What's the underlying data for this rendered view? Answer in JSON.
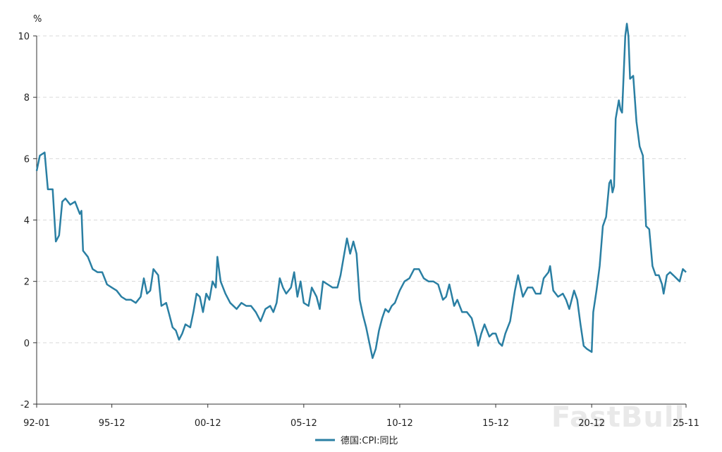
{
  "chart_data": {
    "type": "line",
    "unit": "%",
    "ylim": [
      -2,
      10
    ],
    "yticks": [
      -2,
      0,
      2,
      4,
      6,
      8,
      10
    ],
    "xlim": [
      "1992-01",
      "2025-11"
    ],
    "xtick_labels": [
      "92-01",
      "95-12",
      "00-12",
      "05-12",
      "10-12",
      "15-12",
      "20-12",
      "25-11"
    ],
    "grid": "horizontal dashed",
    "legend_position": "bottom-center",
    "watermark": "FastBull",
    "series": [
      {
        "name": "德国:CPI:同比",
        "color": "#2a7fa3",
        "points": [
          [
            "1992-01",
            5.6
          ],
          [
            "1992-03",
            6.1
          ],
          [
            "1992-06",
            6.2
          ],
          [
            "1992-08",
            5.0
          ],
          [
            "1992-11",
            5.0
          ],
          [
            "1993-01",
            3.3
          ],
          [
            "1993-03",
            3.5
          ],
          [
            "1993-05",
            4.6
          ],
          [
            "1993-07",
            4.7
          ],
          [
            "1993-10",
            4.5
          ],
          [
            "1994-01",
            4.6
          ],
          [
            "1994-04",
            4.2
          ],
          [
            "1994-05",
            4.3
          ],
          [
            "1994-06",
            3.0
          ],
          [
            "1994-09",
            2.8
          ],
          [
            "1994-12",
            2.4
          ],
          [
            "1995-03",
            2.3
          ],
          [
            "1995-06",
            2.3
          ],
          [
            "1995-09",
            1.9
          ],
          [
            "1995-12",
            1.8
          ],
          [
            "1996-03",
            1.7
          ],
          [
            "1996-06",
            1.5
          ],
          [
            "1996-09",
            1.4
          ],
          [
            "1996-12",
            1.4
          ],
          [
            "1997-03",
            1.3
          ],
          [
            "1997-06",
            1.5
          ],
          [
            "1997-08",
            2.1
          ],
          [
            "1997-10",
            1.6
          ],
          [
            "1997-12",
            1.7
          ],
          [
            "1998-02",
            2.4
          ],
          [
            "1998-05",
            2.2
          ],
          [
            "1998-07",
            1.2
          ],
          [
            "1998-10",
            1.3
          ],
          [
            "1998-12",
            0.9
          ],
          [
            "1999-02",
            0.5
          ],
          [
            "1999-04",
            0.4
          ],
          [
            "1999-06",
            0.1
          ],
          [
            "1999-08",
            0.3
          ],
          [
            "1999-10",
            0.6
          ],
          [
            "2000-01",
            0.5
          ],
          [
            "2000-03",
            1.0
          ],
          [
            "2000-05",
            1.6
          ],
          [
            "2000-07",
            1.5
          ],
          [
            "2000-09",
            1.0
          ],
          [
            "2000-11",
            1.6
          ],
          [
            "2001-01",
            1.4
          ],
          [
            "2001-03",
            2.0
          ],
          [
            "2001-05",
            1.8
          ],
          [
            "2001-06",
            2.8
          ],
          [
            "2001-08",
            2.0
          ],
          [
            "2001-11",
            1.6
          ],
          [
            "2002-02",
            1.3
          ],
          [
            "2002-06",
            1.1
          ],
          [
            "2002-09",
            1.3
          ],
          [
            "2002-12",
            1.2
          ],
          [
            "2003-03",
            1.2
          ],
          [
            "2003-06",
            1.0
          ],
          [
            "2003-09",
            0.7
          ],
          [
            "2003-12",
            1.1
          ],
          [
            "2004-03",
            1.2
          ],
          [
            "2004-05",
            1.0
          ],
          [
            "2004-07",
            1.3
          ],
          [
            "2004-09",
            2.1
          ],
          [
            "2004-11",
            1.8
          ],
          [
            "2005-01",
            1.6
          ],
          [
            "2005-04",
            1.8
          ],
          [
            "2005-06",
            2.3
          ],
          [
            "2005-08",
            1.5
          ],
          [
            "2005-10",
            2.0
          ],
          [
            "2005-12",
            1.3
          ],
          [
            "2006-03",
            1.2
          ],
          [
            "2006-05",
            1.8
          ],
          [
            "2006-08",
            1.5
          ],
          [
            "2006-10",
            1.1
          ],
          [
            "2006-12",
            2.0
          ],
          [
            "2007-03",
            1.9
          ],
          [
            "2007-06",
            1.8
          ],
          [
            "2007-09",
            1.8
          ],
          [
            "2007-11",
            2.2
          ],
          [
            "2008-01",
            2.8
          ],
          [
            "2008-03",
            3.4
          ],
          [
            "2008-05",
            2.9
          ],
          [
            "2008-07",
            3.3
          ],
          [
            "2008-09",
            2.9
          ],
          [
            "2008-11",
            1.4
          ],
          [
            "2009-01",
            0.9
          ],
          [
            "2009-03",
            0.5
          ],
          [
            "2009-05",
            0.0
          ],
          [
            "2009-07",
            -0.5
          ],
          [
            "2009-09",
            -0.2
          ],
          [
            "2009-11",
            0.4
          ],
          [
            "2010-01",
            0.8
          ],
          [
            "2010-03",
            1.1
          ],
          [
            "2010-05",
            1.0
          ],
          [
            "2010-07",
            1.2
          ],
          [
            "2010-09",
            1.3
          ],
          [
            "2010-12",
            1.7
          ],
          [
            "2011-03",
            2.0
          ],
          [
            "2011-06",
            2.1
          ],
          [
            "2011-09",
            2.4
          ],
          [
            "2011-12",
            2.4
          ],
          [
            "2012-03",
            2.1
          ],
          [
            "2012-06",
            2.0
          ],
          [
            "2012-09",
            2.0
          ],
          [
            "2012-12",
            1.9
          ],
          [
            "2013-03",
            1.4
          ],
          [
            "2013-05",
            1.5
          ],
          [
            "2013-07",
            1.9
          ],
          [
            "2013-10",
            1.2
          ],
          [
            "2013-12",
            1.4
          ],
          [
            "2014-03",
            1.0
          ],
          [
            "2014-06",
            1.0
          ],
          [
            "2014-09",
            0.8
          ],
          [
            "2014-12",
            0.2
          ],
          [
            "2015-01",
            -0.1
          ],
          [
            "2015-03",
            0.3
          ],
          [
            "2015-05",
            0.6
          ],
          [
            "2015-08",
            0.2
          ],
          [
            "2015-10",
            0.3
          ],
          [
            "2015-12",
            0.3
          ],
          [
            "2016-02",
            0.0
          ],
          [
            "2016-04",
            -0.1
          ],
          [
            "2016-06",
            0.3
          ],
          [
            "2016-09",
            0.7
          ],
          [
            "2016-12",
            1.7
          ],
          [
            "2017-02",
            2.2
          ],
          [
            "2017-05",
            1.5
          ],
          [
            "2017-08",
            1.8
          ],
          [
            "2017-11",
            1.8
          ],
          [
            "2018-01",
            1.6
          ],
          [
            "2018-04",
            1.6
          ],
          [
            "2018-06",
            2.1
          ],
          [
            "2018-09",
            2.3
          ],
          [
            "2018-10",
            2.5
          ],
          [
            "2018-12",
            1.7
          ],
          [
            "2019-03",
            1.5
          ],
          [
            "2019-06",
            1.6
          ],
          [
            "2019-08",
            1.4
          ],
          [
            "2019-10",
            1.1
          ],
          [
            "2019-12",
            1.5
          ],
          [
            "2020-01",
            1.7
          ],
          [
            "2020-03",
            1.4
          ],
          [
            "2020-05",
            0.6
          ],
          [
            "2020-07",
            -0.1
          ],
          [
            "2020-09",
            -0.2
          ],
          [
            "2020-12",
            -0.3
          ],
          [
            "2021-01",
            1.0
          ],
          [
            "2021-03",
            1.7
          ],
          [
            "2021-05",
            2.5
          ],
          [
            "2021-07",
            3.8
          ],
          [
            "2021-09",
            4.1
          ],
          [
            "2021-11",
            5.2
          ],
          [
            "2021-12",
            5.3
          ],
          [
            "2022-01",
            4.9
          ],
          [
            "2022-02",
            5.1
          ],
          [
            "2022-03",
            7.3
          ],
          [
            "2022-05",
            7.9
          ],
          [
            "2022-06",
            7.6
          ],
          [
            "2022-07",
            7.5
          ],
          [
            "2022-09",
            10.0
          ],
          [
            "2022-10",
            10.4
          ],
          [
            "2022-11",
            10.0
          ],
          [
            "2022-12",
            8.6
          ],
          [
            "2023-02",
            8.7
          ],
          [
            "2023-04",
            7.2
          ],
          [
            "2023-06",
            6.4
          ],
          [
            "2023-08",
            6.1
          ],
          [
            "2023-10",
            3.8
          ],
          [
            "2023-12",
            3.7
          ],
          [
            "2024-02",
            2.5
          ],
          [
            "2024-04",
            2.2
          ],
          [
            "2024-06",
            2.2
          ],
          [
            "2024-08",
            1.9
          ],
          [
            "2024-09",
            1.6
          ],
          [
            "2024-11",
            2.2
          ],
          [
            "2025-01",
            2.3
          ],
          [
            "2025-03",
            2.2
          ],
          [
            "2025-05",
            2.1
          ],
          [
            "2025-07",
            2.0
          ],
          [
            "2025-09",
            2.4
          ],
          [
            "2025-11",
            2.3
          ]
        ]
      }
    ]
  }
}
